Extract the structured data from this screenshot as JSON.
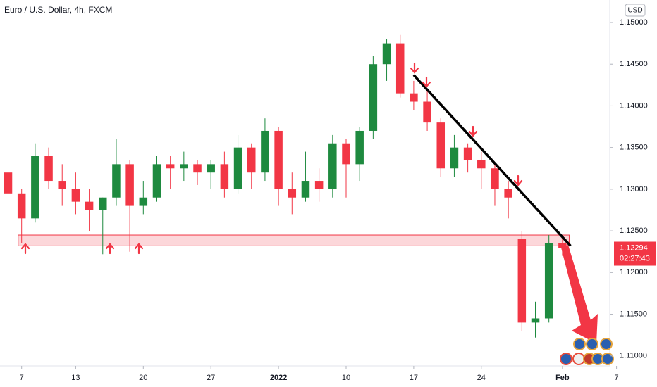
{
  "chart_data": {
    "type": "candlestick",
    "title": "Euro / U.S. Dollar, 4h, FXCM",
    "currency": "USD",
    "up_color": "#1e8a3f",
    "down_color": "#f23645",
    "xlim": [
      -1.6,
      43.5
    ],
    "xticks": [
      {
        "value": 0,
        "label": "7"
      },
      {
        "value": 4,
        "label": "13"
      },
      {
        "value": 9,
        "label": "20"
      },
      {
        "value": 14,
        "label": "27"
      },
      {
        "value": 19,
        "label": "2022"
      },
      {
        "value": 24,
        "label": "10"
      },
      {
        "value": 29,
        "label": "17"
      },
      {
        "value": 34,
        "label": "24"
      },
      {
        "value": 40,
        "label": "Feb"
      },
      {
        "value": 44,
        "label": "7"
      }
    ],
    "ylim": [
      1.1088,
      1.1527
    ],
    "yticks": [
      {
        "value": 1.11,
        "label": "1.11000"
      },
      {
        "value": 1.115,
        "label": "1.11500"
      },
      {
        "value": 1.12,
        "label": "1.12000"
      },
      {
        "value": 1.125,
        "label": "1.12500"
      },
      {
        "value": 1.13,
        "label": "1.13000"
      },
      {
        "value": 1.135,
        "label": "1.13500"
      },
      {
        "value": 1.14,
        "label": "1.14000"
      },
      {
        "value": 1.145,
        "label": "1.14500"
      },
      {
        "value": 1.15,
        "label": "1.15000"
      }
    ],
    "x": [
      -1,
      0,
      1,
      2,
      3,
      4,
      5,
      6,
      7,
      8,
      9,
      10,
      11,
      12,
      13,
      14,
      15,
      16,
      17,
      18,
      19,
      20,
      21,
      22,
      23,
      24,
      25,
      26,
      27,
      28,
      29,
      30,
      31,
      32,
      33,
      34,
      35,
      36,
      37,
      38,
      39,
      40
    ],
    "open": [
      1.132,
      1.1295,
      1.1265,
      1.134,
      1.131,
      1.13,
      1.1285,
      1.1275,
      1.129,
      1.133,
      1.128,
      1.129,
      1.133,
      1.1325,
      1.133,
      1.132,
      1.133,
      1.13,
      1.135,
      1.132,
      1.137,
      1.13,
      1.129,
      1.131,
      1.13,
      1.1355,
      1.133,
      1.137,
      1.145,
      1.1475,
      1.1415,
      1.1405,
      1.138,
      1.1325,
      1.135,
      1.1335,
      1.1325,
      1.13,
      1.124,
      1.114,
      1.1145,
      1.1235
    ],
    "high": [
      1.133,
      1.13,
      1.1355,
      1.135,
      1.133,
      1.132,
      1.13,
      1.129,
      1.136,
      1.1335,
      1.131,
      1.134,
      1.134,
      1.1345,
      1.1335,
      1.1335,
      1.1345,
      1.1365,
      1.1355,
      1.1385,
      1.1375,
      1.132,
      1.1345,
      1.1325,
      1.1365,
      1.136,
      1.1375,
      1.146,
      1.148,
      1.1485,
      1.143,
      1.142,
      1.1385,
      1.1365,
      1.1355,
      1.1345,
      1.133,
      1.131,
      1.125,
      1.1165,
      1.1245,
      1.1245
    ],
    "low": [
      1.129,
      1.1235,
      1.126,
      1.13,
      1.128,
      1.127,
      1.125,
      1.1222,
      1.128,
      1.1225,
      1.127,
      1.1285,
      1.13,
      1.131,
      1.1305,
      1.13,
      1.129,
      1.1295,
      1.13,
      1.131,
      1.128,
      1.127,
      1.1285,
      1.1285,
      1.129,
      1.129,
      1.131,
      1.136,
      1.143,
      1.141,
      1.1395,
      1.137,
      1.1315,
      1.1315,
      1.132,
      1.13,
      1.128,
      1.1265,
      1.113,
      1.1122,
      1.114,
      1.122
    ],
    "close": [
      1.1295,
      1.1265,
      1.134,
      1.131,
      1.13,
      1.1285,
      1.1275,
      1.129,
      1.133,
      1.128,
      1.129,
      1.133,
      1.1325,
      1.133,
      1.132,
      1.133,
      1.13,
      1.135,
      1.132,
      1.137,
      1.13,
      1.129,
      1.131,
      1.13,
      1.1355,
      1.133,
      1.137,
      1.145,
      1.1475,
      1.1415,
      1.1405,
      1.138,
      1.1325,
      1.135,
      1.1335,
      1.1325,
      1.13,
      1.129,
      1.114,
      1.1145,
      1.1235,
      1.12294
    ],
    "zone": {
      "low": 1.1232,
      "high": 1.1245,
      "x": [
        -0.26,
        40.5
      ]
    },
    "trendline": {
      "x": [
        29,
        40.6
      ],
      "y": [
        1.1437,
        1.1232
      ]
    },
    "last_price": 1.12294,
    "countdown": "02:27:43"
  }
}
